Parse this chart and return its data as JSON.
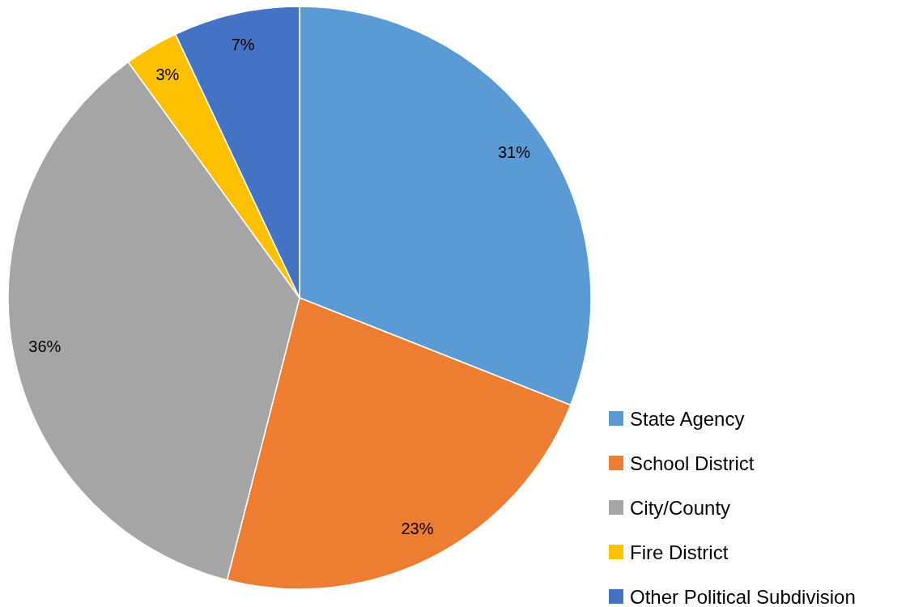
{
  "chart_data": {
    "type": "pie",
    "categories": [
      "State Agency",
      "School District",
      "City/County",
      "Fire District",
      "Other Political Subdivision"
    ],
    "values": [
      31,
      23,
      36,
      3,
      7
    ],
    "colors": [
      "#5b9bd5",
      "#ed7d31",
      "#a5a5a5",
      "#ffc000",
      "#4472c4"
    ],
    "value_labels": [
      "31%",
      "23%",
      "36%",
      "3%",
      "7%"
    ],
    "legend": "bottom right"
  }
}
